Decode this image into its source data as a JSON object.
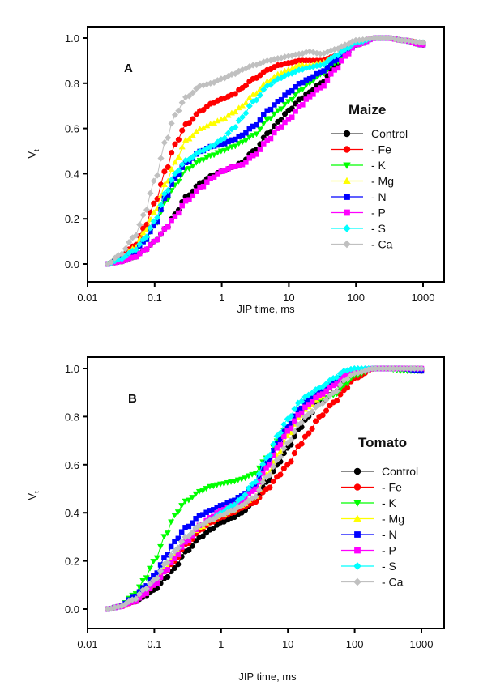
{
  "chart_data": [
    {
      "type": "scatter",
      "panel": "A",
      "title": "",
      "legend_title": "Maize",
      "legend_position": "right",
      "xlabel": "JIP time, ms",
      "ylabel": "V",
      "ylabel_subscript": "t",
      "xscale": "log",
      "xlim": [
        0.01,
        2000
      ],
      "ylim": [
        -0.08,
        1.05
      ],
      "xticks": [
        0.01,
        0.1,
        1,
        10,
        100,
        1000
      ],
      "xtick_labels": [
        "0.01",
        "0.1",
        "1",
        "10",
        "100",
        "1000"
      ],
      "yticks": [
        0.0,
        0.2,
        0.4,
        0.6,
        0.8,
        1.0
      ],
      "ytick_labels": [
        "0.0",
        "0.2",
        "0.4",
        "0.6",
        "0.8",
        "1.0"
      ],
      "grid": false,
      "x": [
        0.02,
        0.03,
        0.05,
        0.07,
        0.1,
        0.15,
        0.2,
        0.3,
        0.5,
        0.7,
        1,
        1.5,
        2,
        3,
        5,
        7,
        10,
        15,
        20,
        30,
        50,
        70,
        100,
        200,
        300,
        500,
        1000
      ],
      "series": [
        {
          "name": "Control",
          "color": "#000000",
          "marker": "circle",
          "values": [
            0,
            0.01,
            0.03,
            0.06,
            0.1,
            0.16,
            0.22,
            0.3,
            0.36,
            0.39,
            0.41,
            0.43,
            0.45,
            0.5,
            0.58,
            0.63,
            0.68,
            0.73,
            0.76,
            0.8,
            0.88,
            0.93,
            0.97,
            1.0,
            1.0,
            0.99,
            0.97
          ]
        },
        {
          "name": "- Fe",
          "color": "#ff0000",
          "marker": "circle",
          "values": [
            0,
            0.03,
            0.08,
            0.16,
            0.27,
            0.42,
            0.53,
            0.62,
            0.68,
            0.71,
            0.73,
            0.75,
            0.78,
            0.82,
            0.86,
            0.88,
            0.89,
            0.9,
            0.9,
            0.9,
            0.92,
            0.95,
            0.98,
            1.0,
            1.0,
            0.99,
            0.98
          ]
        },
        {
          "name": "- K",
          "color": "#00ff00",
          "marker": "triangle-down",
          "values": [
            0,
            0.02,
            0.05,
            0.1,
            0.17,
            0.28,
            0.35,
            0.42,
            0.46,
            0.48,
            0.5,
            0.52,
            0.54,
            0.57,
            0.64,
            0.68,
            0.72,
            0.77,
            0.8,
            0.84,
            0.89,
            0.93,
            0.97,
            1.0,
            1.0,
            0.99,
            0.97
          ]
        },
        {
          "name": "- Mg",
          "color": "#ffff00",
          "marker": "triangle-up",
          "values": [
            0,
            0.02,
            0.07,
            0.14,
            0.23,
            0.36,
            0.45,
            0.55,
            0.6,
            0.62,
            0.64,
            0.67,
            0.7,
            0.75,
            0.81,
            0.84,
            0.86,
            0.88,
            0.88,
            0.89,
            0.92,
            0.95,
            0.98,
            1.0,
            1.0,
            0.99,
            0.98
          ]
        },
        {
          "name": "- N",
          "color": "#0000ff",
          "marker": "square",
          "values": [
            0,
            0.02,
            0.05,
            0.1,
            0.17,
            0.3,
            0.38,
            0.45,
            0.5,
            0.52,
            0.53,
            0.55,
            0.57,
            0.61,
            0.68,
            0.72,
            0.76,
            0.8,
            0.82,
            0.85,
            0.9,
            0.94,
            0.97,
            1.0,
            1.0,
            0.99,
            0.97
          ]
        },
        {
          "name": "- P",
          "color": "#ff00ff",
          "marker": "square",
          "values": [
            0,
            0.01,
            0.03,
            0.06,
            0.1,
            0.16,
            0.21,
            0.28,
            0.34,
            0.38,
            0.41,
            0.43,
            0.44,
            0.48,
            0.55,
            0.6,
            0.64,
            0.7,
            0.74,
            0.78,
            0.86,
            0.92,
            0.97,
            1.0,
            1.0,
            0.99,
            0.97
          ]
        },
        {
          "name": "- S",
          "color": "#00ffff",
          "marker": "diamond",
          "values": [
            0,
            0.02,
            0.06,
            0.11,
            0.19,
            0.32,
            0.4,
            0.46,
            0.5,
            0.52,
            0.55,
            0.6,
            0.65,
            0.72,
            0.79,
            0.82,
            0.84,
            0.86,
            0.87,
            0.88,
            0.92,
            0.95,
            0.98,
            1.0,
            1.0,
            0.99,
            0.98
          ]
        },
        {
          "name": "- Ca",
          "color": "#c0c0c0",
          "marker": "diamond",
          "values": [
            0,
            0.04,
            0.12,
            0.22,
            0.37,
            0.55,
            0.66,
            0.74,
            0.79,
            0.8,
            0.82,
            0.84,
            0.86,
            0.88,
            0.9,
            0.91,
            0.92,
            0.93,
            0.94,
            0.93,
            0.95,
            0.97,
            0.99,
            1.0,
            1.0,
            0.99,
            0.98
          ]
        }
      ]
    },
    {
      "type": "scatter",
      "panel": "B",
      "title": "",
      "legend_title": "Tomato",
      "legend_position": "right",
      "xlabel": "JIP time, ms",
      "ylabel": "V",
      "ylabel_subscript": "t",
      "xscale": "log",
      "xlim": [
        0.01,
        2000
      ],
      "ylim": [
        -0.08,
        1.05
      ],
      "xticks": [
        0.01,
        0.1,
        1,
        10,
        100,
        1000
      ],
      "xtick_labels": [
        "0.01",
        "0.1",
        "1",
        "10",
        "100",
        "1000"
      ],
      "yticks": [
        0.0,
        0.2,
        0.4,
        0.6,
        0.8,
        1.0
      ],
      "ytick_labels": [
        "0.0",
        "0.2",
        "0.4",
        "0.6",
        "0.8",
        "1.0"
      ],
      "grid": false,
      "x": [
        0.02,
        0.03,
        0.05,
        0.07,
        0.1,
        0.15,
        0.2,
        0.3,
        0.5,
        0.7,
        1,
        1.5,
        2,
        3,
        5,
        7,
        10,
        15,
        20,
        30,
        50,
        70,
        100,
        200,
        300,
        500,
        1000
      ],
      "series": [
        {
          "name": "Control",
          "color": "#000000",
          "marker": "circle",
          "values": [
            0,
            0.01,
            0.03,
            0.05,
            0.08,
            0.13,
            0.17,
            0.24,
            0.3,
            0.33,
            0.36,
            0.38,
            0.4,
            0.44,
            0.53,
            0.6,
            0.67,
            0.75,
            0.8,
            0.86,
            0.9,
            0.94,
            0.97,
            1.0,
            1.0,
            1.0,
            1.0
          ]
        },
        {
          "name": "- Fe",
          "color": "#ff0000",
          "marker": "circle",
          "values": [
            0,
            0.01,
            0.03,
            0.06,
            0.1,
            0.16,
            0.2,
            0.27,
            0.33,
            0.36,
            0.38,
            0.4,
            0.42,
            0.44,
            0.5,
            0.55,
            0.6,
            0.68,
            0.73,
            0.8,
            0.86,
            0.91,
            0.96,
            1.0,
            1.0,
            1.0,
            0.99
          ]
        },
        {
          "name": "- K",
          "color": "#00ff00",
          "marker": "triangle-down",
          "values": [
            0,
            0.01,
            0.06,
            0.12,
            0.2,
            0.31,
            0.39,
            0.45,
            0.49,
            0.51,
            0.52,
            0.53,
            0.54,
            0.56,
            0.63,
            0.7,
            0.76,
            0.83,
            0.86,
            0.87,
            0.89,
            0.93,
            0.97,
            1.0,
            1.0,
            0.99,
            0.99
          ]
        },
        {
          "name": "- Mg",
          "color": "#ffff00",
          "marker": "triangle-up",
          "values": [
            0,
            0.01,
            0.04,
            0.07,
            0.11,
            0.17,
            0.22,
            0.29,
            0.34,
            0.37,
            0.39,
            0.41,
            0.43,
            0.46,
            0.56,
            0.64,
            0.72,
            0.8,
            0.84,
            0.88,
            0.93,
            0.97,
            0.99,
            1.0,
            1.0,
            1.0,
            1.0
          ]
        },
        {
          "name": "- N",
          "color": "#0000ff",
          "marker": "square",
          "values": [
            0,
            0.01,
            0.05,
            0.09,
            0.14,
            0.22,
            0.28,
            0.34,
            0.39,
            0.41,
            0.43,
            0.45,
            0.47,
            0.51,
            0.61,
            0.69,
            0.76,
            0.83,
            0.87,
            0.9,
            0.94,
            0.97,
            0.99,
            1.0,
            1.0,
            1.0,
            0.99
          ]
        },
        {
          "name": "- P",
          "color": "#ff00ff",
          "marker": "square",
          "values": [
            0,
            0.01,
            0.03,
            0.06,
            0.1,
            0.16,
            0.21,
            0.28,
            0.35,
            0.38,
            0.41,
            0.43,
            0.45,
            0.49,
            0.59,
            0.67,
            0.74,
            0.81,
            0.85,
            0.89,
            0.93,
            0.97,
            0.99,
            1.0,
            1.0,
            1.0,
            1.0
          ]
        },
        {
          "name": "- S",
          "color": "#00ffff",
          "marker": "diamond",
          "values": [
            0,
            0.01,
            0.04,
            0.08,
            0.12,
            0.19,
            0.24,
            0.3,
            0.35,
            0.37,
            0.4,
            0.43,
            0.46,
            0.52,
            0.63,
            0.72,
            0.79,
            0.86,
            0.89,
            0.92,
            0.96,
            0.99,
            1.0,
            1.0,
            1.0,
            1.0,
            1.0
          ]
        },
        {
          "name": "- Ca",
          "color": "#c0c0c0",
          "marker": "diamond",
          "values": [
            0,
            0.01,
            0.04,
            0.08,
            0.12,
            0.19,
            0.24,
            0.3,
            0.35,
            0.37,
            0.39,
            0.41,
            0.43,
            0.46,
            0.55,
            0.62,
            0.69,
            0.77,
            0.81,
            0.85,
            0.9,
            0.95,
            0.98,
            1.0,
            1.0,
            1.0,
            1.0
          ]
        }
      ]
    }
  ]
}
